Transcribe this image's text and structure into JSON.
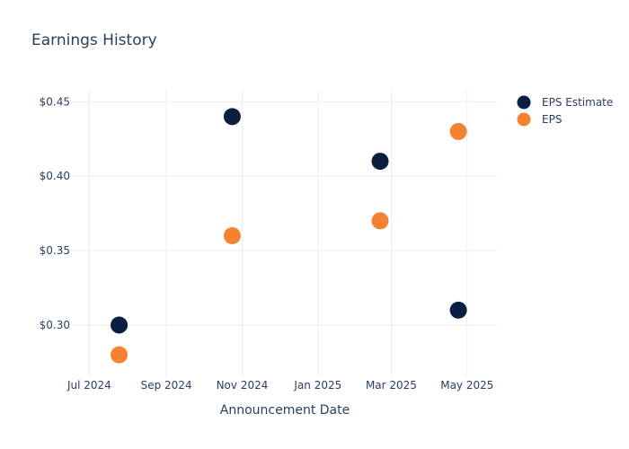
{
  "chart_data": {
    "type": "scatter",
    "title": "Earnings History",
    "xlabel": "Announcement Date",
    "ylabel": "",
    "x_type": "date",
    "xlim": [
      "2024-06-17",
      "2025-05-25"
    ],
    "ylim": [
      0.265,
      0.458
    ],
    "x_ticks": [
      {
        "value": "2024-07-01",
        "label": "Jul 2024"
      },
      {
        "value": "2024-09-01",
        "label": "Sep 2024"
      },
      {
        "value": "2024-11-01",
        "label": "Nov 2024"
      },
      {
        "value": "2025-01-01",
        "label": "Jan 2025"
      },
      {
        "value": "2025-03-01",
        "label": "Mar 2025"
      },
      {
        "value": "2025-05-01",
        "label": "May 2025"
      }
    ],
    "y_ticks": [
      {
        "value": 0.3,
        "label": "$0.30"
      },
      {
        "value": 0.35,
        "label": "$0.35"
      },
      {
        "value": 0.4,
        "label": "$0.40"
      },
      {
        "value": 0.45,
        "label": "$0.45"
      }
    ],
    "grid": true,
    "legend_position": "top-right",
    "series": [
      {
        "name": "EPS Estimate",
        "color": "#0b1f41",
        "points": [
          {
            "x": "2024-07-25",
            "y": 0.3
          },
          {
            "x": "2024-10-24",
            "y": 0.44
          },
          {
            "x": "2025-02-20",
            "y": 0.41
          },
          {
            "x": "2025-04-24",
            "y": 0.31
          }
        ]
      },
      {
        "name": "EPS",
        "color": "#f58231",
        "points": [
          {
            "x": "2024-07-25",
            "y": 0.28
          },
          {
            "x": "2024-10-24",
            "y": 0.36
          },
          {
            "x": "2025-02-20",
            "y": 0.37
          },
          {
            "x": "2025-04-24",
            "y": 0.43
          }
        ]
      }
    ]
  }
}
